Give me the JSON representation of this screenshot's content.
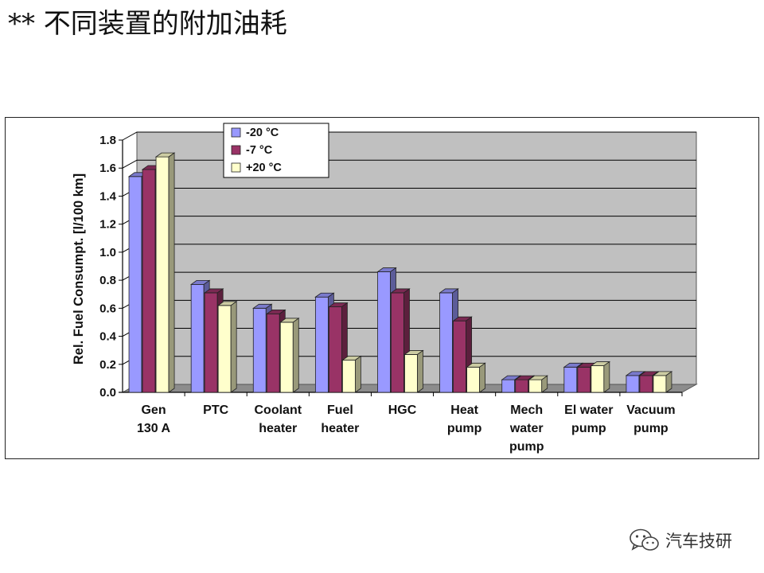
{
  "slide": {
    "title": "** 不同装置的附加油耗"
  },
  "watermark": {
    "text": "汽车技研",
    "icon": "wechat-icon"
  },
  "colors": {
    "series": [
      "#9999ff",
      "#993366",
      "#ffffcc"
    ],
    "plot_background": "#c0c0c0",
    "gridline": "#000000"
  },
  "chart_data": {
    "type": "bar",
    "title": "",
    "xlabel": "",
    "ylabel": "Rel. Fuel Consumpt. [l/100 km]",
    "ylim": [
      0,
      1.8
    ],
    "yticks": [
      "0.0",
      "0.2",
      "0.4",
      "0.6",
      "0.8",
      "1.0",
      "1.2",
      "1.4",
      "1.6",
      "1.8"
    ],
    "grid": true,
    "style": "3d-clustered",
    "legend_position": "top-left",
    "categories": [
      [
        "Gen",
        "130 A"
      ],
      [
        "PTC"
      ],
      [
        "Coolant",
        "heater"
      ],
      [
        "Fuel",
        "heater"
      ],
      [
        "HGC"
      ],
      [
        "Heat",
        "pump"
      ],
      [
        "Mech",
        "water",
        "pump"
      ],
      [
        "El water",
        "pump"
      ],
      [
        "Vacuum",
        "pump"
      ]
    ],
    "series": [
      {
        "name": "-20 °C",
        "values": [
          1.54,
          0.77,
          0.6,
          0.68,
          0.86,
          0.71,
          0.09,
          0.18,
          0.12
        ]
      },
      {
        "name": "-7 °C",
        "values": [
          1.59,
          0.71,
          0.56,
          0.61,
          0.71,
          0.51,
          0.09,
          0.18,
          0.12
        ]
      },
      {
        "name": "+20 °C",
        "values": [
          1.68,
          0.62,
          0.5,
          0.23,
          0.27,
          0.18,
          0.09,
          0.19,
          0.12
        ]
      }
    ]
  }
}
